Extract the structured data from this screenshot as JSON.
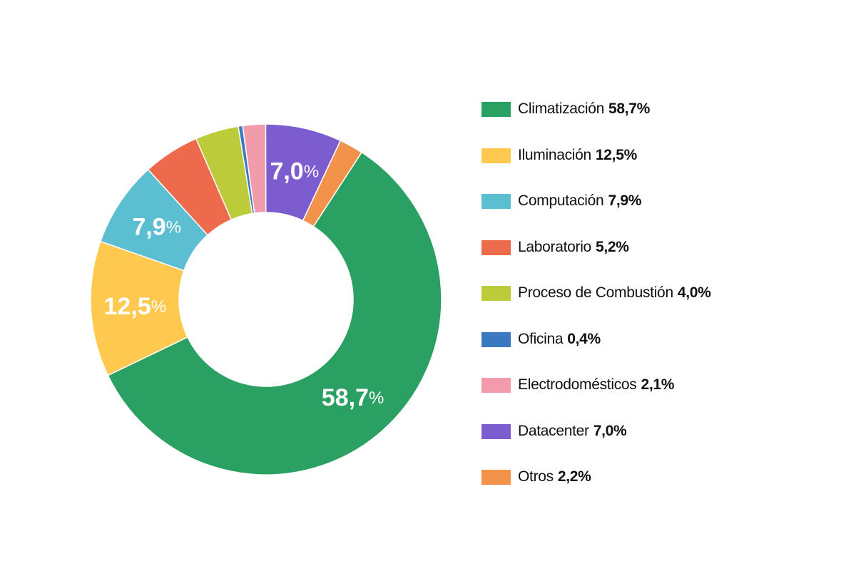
{
  "chart_data": {
    "type": "pie",
    "donut": true,
    "start_angle_deg": 33,
    "slices": [
      {
        "label": "Climatización",
        "value": 58.7,
        "value_text": "58,7%",
        "color": "#2aa062",
        "show_on_chart": true,
        "chart_label_num": "58,7",
        "chart_label_unit": "%"
      },
      {
        "label": "Iluminación",
        "value": 12.5,
        "value_text": "12,5%",
        "color": "#ffc94f",
        "show_on_chart": true,
        "chart_label_num": "12,5",
        "chart_label_unit": "%"
      },
      {
        "label": "Computación",
        "value": 7.9,
        "value_text": "7,9%",
        "color": "#5bbfd1",
        "show_on_chart": true,
        "chart_label_num": "7,9",
        "chart_label_unit": "%"
      },
      {
        "label": "Laboratorio",
        "value": 5.2,
        "value_text": "5,2%",
        "color": "#ee6a4c",
        "show_on_chart": false
      },
      {
        "label": "Proceso de Combustión",
        "value": 4.0,
        "value_text": "4,0%",
        "color": "#bccb3a",
        "show_on_chart": false
      },
      {
        "label": "Oficina",
        "value": 0.4,
        "value_text": "0,4%",
        "color": "#3a78c1",
        "show_on_chart": false
      },
      {
        "label": "Electrodomésticos",
        "value": 2.1,
        "value_text": "2,1%",
        "color": "#f29bab",
        "show_on_chart": false
      },
      {
        "label": "Datacenter",
        "value": 7.0,
        "value_text": "7,0%",
        "color": "#7d5cd0",
        "show_on_chart": true,
        "chart_label_num": "7,0",
        "chart_label_unit": "%"
      },
      {
        "label": "Otros",
        "value": 2.2,
        "value_text": "2,2%",
        "color": "#f3924a",
        "show_on_chart": false
      }
    ],
    "legend_position": "right"
  }
}
